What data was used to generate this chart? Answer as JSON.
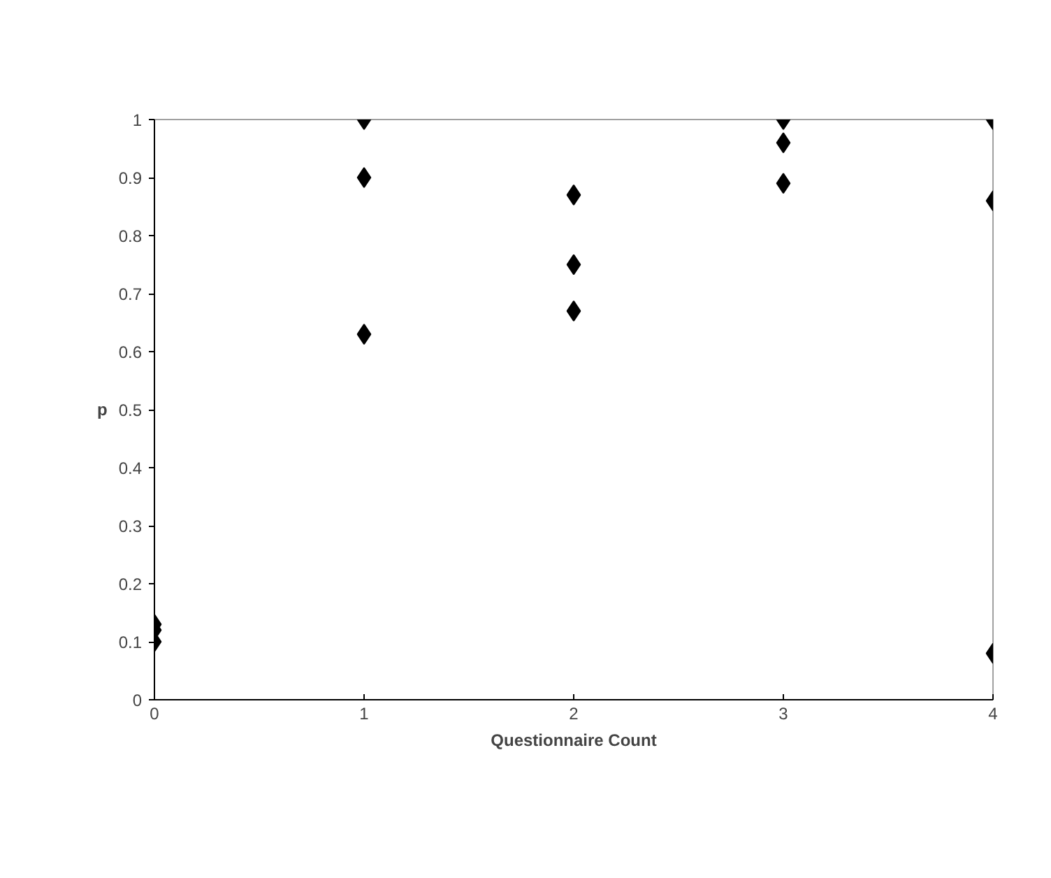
{
  "chart_data": {
    "type": "scatter",
    "xlabel": "Questionnaire Count",
    "ylabel": "p",
    "marker": "diamond",
    "grid": false,
    "x": [
      0,
      0,
      0,
      1,
      1,
      1,
      2,
      2,
      2,
      3,
      3,
      3,
      4,
      4,
      4
    ],
    "series": [
      {
        "color": "#000000",
        "values": [
          0.13,
          0.12,
          0.1,
          1.0,
          0.9,
          0.63,
          0.87,
          0.75,
          0.67,
          1.0,
          0.96,
          0.89,
          1.0,
          0.86,
          0.08
        ]
      }
    ],
    "xlim": [
      0,
      4
    ],
    "xticks": [
      0,
      1,
      2,
      3,
      4
    ],
    "ylim": [
      0,
      1
    ],
    "yticks": [
      0,
      0.1,
      0.2,
      0.3,
      0.4,
      0.5,
      0.6,
      0.7,
      0.8,
      0.9,
      1
    ]
  }
}
